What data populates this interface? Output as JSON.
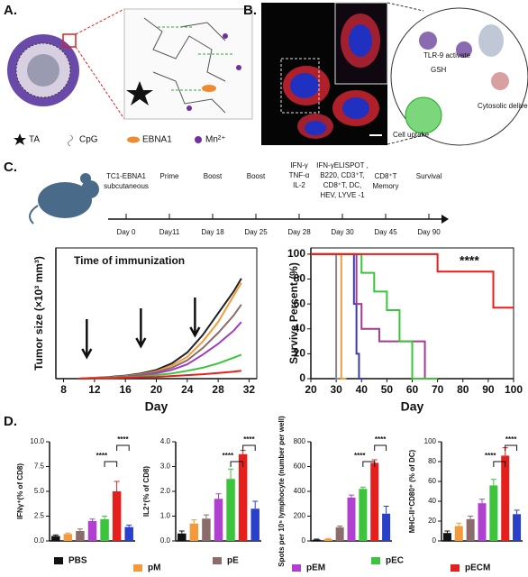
{
  "panel_a": {
    "label": "A.",
    "legend": [
      "TA",
      "CpG",
      "EBNA1",
      "Mn²⁺"
    ]
  },
  "panel_b": {
    "label": "B.",
    "annotations": [
      "TLR-9 activate",
      "GSH",
      "Cytosolic delivery",
      "Cell uptake"
    ]
  },
  "panel_c": {
    "label": "C.",
    "timeline": {
      "events": [
        [
          "TC1-EBNA1",
          "subcutaneous"
        ],
        [
          "Prime"
        ],
        [
          "Boost"
        ],
        [
          "Boost"
        ],
        [
          "IFN-γ",
          "TNF-α",
          "IL-2"
        ],
        [
          "IFN-γELISPOT ,",
          "B220, CD3⁺T,",
          "CD8⁺T, DC,",
          "HEV, LYVE -1"
        ],
        [
          "CD8⁺T",
          "Memory"
        ],
        [
          "Survival"
        ]
      ],
      "days": [
        "Day 0",
        "Day11",
        "Day 18",
        "Day 25",
        "Day 28",
        "Day 30",
        "Day 45",
        "Day 90"
      ]
    }
  },
  "panel_d": {
    "label": "D."
  },
  "chart_data": [
    {
      "type": "line",
      "x_label": "Day",
      "y_label": "Tumor size (×10³ mm³)",
      "annotation": "Time of immunization",
      "arrows": [
        11,
        18,
        25
      ],
      "x": [
        10,
        12,
        14,
        16,
        18,
        20,
        22,
        24,
        26,
        28,
        30,
        31
      ],
      "xlim": [
        7,
        33
      ],
      "xticks": [
        8,
        12,
        16,
        20,
        24,
        28,
        32
      ],
      "ylim": [
        0,
        3
      ],
      "series": [
        {
          "name": "PBS",
          "color": "#222222",
          "values": [
            0,
            0.02,
            0.04,
            0.07,
            0.12,
            0.2,
            0.35,
            0.6,
            1.0,
            1.5,
            2.0,
            2.3
          ]
        },
        {
          "name": "pM",
          "color": "#f39a3c",
          "values": [
            0,
            0.02,
            0.03,
            0.06,
            0.1,
            0.17,
            0.3,
            0.5,
            0.85,
            1.3,
            1.9,
            2.2
          ]
        },
        {
          "name": "pE",
          "color": "#8c6b6b",
          "values": [
            0,
            0.01,
            0.03,
            0.05,
            0.09,
            0.15,
            0.25,
            0.42,
            0.7,
            1.05,
            1.45,
            1.7
          ]
        },
        {
          "name": "pEM",
          "color": "#a23cc0",
          "values": [
            0,
            0.01,
            0.02,
            0.04,
            0.07,
            0.12,
            0.2,
            0.33,
            0.55,
            0.8,
            1.1,
            1.3
          ]
        },
        {
          "name": "pEC",
          "color": "#3cc43c",
          "values": [
            0,
            0.01,
            0.02,
            0.03,
            0.05,
            0.08,
            0.12,
            0.18,
            0.25,
            0.35,
            0.48,
            0.55
          ]
        },
        {
          "name": "pECM",
          "color": "#e5201c",
          "values": [
            0,
            0.01,
            0.01,
            0.02,
            0.03,
            0.04,
            0.06,
            0.08,
            0.1,
            0.13,
            0.16,
            0.18
          ]
        }
      ]
    },
    {
      "type": "line",
      "x_label": "Day",
      "y_label": "Survive Percent (%)",
      "annotation": "****",
      "xlim": [
        20,
        100
      ],
      "xticks": [
        20,
        30,
        40,
        50,
        60,
        70,
        80,
        90,
        100
      ],
      "ylim": [
        0,
        105
      ],
      "yticks": [
        0,
        20,
        40,
        60,
        80,
        100
      ],
      "series": [
        {
          "name": "PBS",
          "color": "#888888",
          "x": [
            20,
            30,
            30,
            32
          ],
          "values": [
            100,
            100,
            0,
            0
          ]
        },
        {
          "name": "pM",
          "color": "#f39a3c",
          "x": [
            20,
            32,
            32,
            34
          ],
          "values": [
            100,
            100,
            0,
            0
          ]
        },
        {
          "name": "pE",
          "color": "#3b3bb0",
          "x": [
            20,
            37,
            37,
            38,
            38,
            39,
            39,
            41
          ],
          "values": [
            100,
            100,
            60,
            60,
            20,
            20,
            0,
            0
          ]
        },
        {
          "name": "pEM",
          "color": "#a23c90",
          "x": [
            20,
            38,
            38,
            40,
            40,
            47,
            47,
            65,
            65,
            67
          ],
          "values": [
            100,
            100,
            60,
            60,
            40,
            40,
            30,
            30,
            0,
            0
          ]
        },
        {
          "name": "pEC",
          "color": "#3cc43c",
          "x": [
            20,
            40,
            40,
            45,
            45,
            50,
            50,
            55,
            55,
            60,
            60,
            70
          ],
          "values": [
            100,
            100,
            85,
            85,
            70,
            70,
            55,
            55,
            30,
            30,
            0,
            0
          ]
        },
        {
          "name": "pECM",
          "color": "#e5201c",
          "x": [
            20,
            70,
            70,
            92,
            92,
            100
          ],
          "values": [
            100,
            100,
            86,
            86,
            57,
            57
          ]
        }
      ]
    },
    {
      "type": "bar",
      "y_label": "IFNγ⁺(% of CD8)",
      "annotations": [
        "****",
        "****"
      ],
      "categories": [
        "PBS",
        "pM",
        "pE",
        "pEM",
        "pEC",
        "pECM",
        null
      ],
      "colors": [
        "#111111",
        "#f39a3c",
        "#8c6b6b",
        "#b040d0",
        "#3cc43c",
        "#e5201c",
        "#2a40c8"
      ],
      "values": [
        0.5,
        0.7,
        1.0,
        2.0,
        2.2,
        5.0,
        1.4
      ],
      "errors": [
        0.1,
        0.1,
        0.2,
        0.2,
        0.3,
        1.0,
        0.2
      ],
      "ylim": [
        0,
        10
      ],
      "yticks": [
        {
          "value": 0,
          "label": "0.0"
        },
        {
          "value": 2.5,
          "label": "2.5"
        },
        {
          "value": 5,
          "label": "5.0"
        },
        {
          "value": 7.5,
          "label": "7.5"
        },
        {
          "value": 10,
          "label": "10.0"
        }
      ]
    },
    {
      "type": "bar",
      "y_label": "IL2⁺(% of CD8)",
      "annotations": [
        "****",
        "****"
      ],
      "categories": [
        "PBS",
        "pM",
        "pE",
        "pEM",
        "pEC",
        "pECM",
        null
      ],
      "colors": [
        "#111111",
        "#f39a3c",
        "#8c6b6b",
        "#b040d0",
        "#3cc43c",
        "#e5201c",
        "#2a40c8"
      ],
      "values": [
        0.3,
        0.7,
        0.9,
        1.7,
        2.5,
        3.5,
        1.3
      ],
      "errors": [
        0.1,
        0.15,
        0.15,
        0.2,
        0.4,
        0.15,
        0.3
      ],
      "ylim": [
        0,
        4
      ],
      "yticks": [
        {
          "value": 0,
          "label": "0.0"
        },
        {
          "value": 1,
          "label": "1.0"
        },
        {
          "value": 2,
          "label": "2.0"
        },
        {
          "value": 3,
          "label": "3.0"
        },
        {
          "value": 4,
          "label": "4.0"
        }
      ]
    },
    {
      "type": "bar",
      "y_label": "Spots per 10⁵ lymphocyte (number per well)",
      "annotations": [
        "****",
        "****"
      ],
      "categories": [
        "PBS",
        "pM",
        "pE",
        "pEM",
        "pEC",
        "pECM",
        null
      ],
      "colors": [
        "#111111",
        "#f39a3c",
        "#8c6b6b",
        "#b040d0",
        "#3cc43c",
        "#e5201c",
        "#2a40c8"
      ],
      "values": [
        10,
        15,
        110,
        350,
        420,
        630,
        220
      ],
      "errors": [
        5,
        5,
        10,
        20,
        15,
        25,
        60
      ],
      "ylim": [
        0,
        800
      ],
      "yticks": [
        0,
        200,
        400,
        600,
        800
      ]
    },
    {
      "type": "bar",
      "y_label": "MHC-II⁺CD80⁺ (% of DC)",
      "annotations": [
        "****",
        "****"
      ],
      "categories": [
        "PBS",
        "pM",
        "pE",
        "pEM",
        "pEC",
        "pECM",
        null
      ],
      "colors": [
        "#111111",
        "#f39a3c",
        "#8c6b6b",
        "#b040d0",
        "#3cc43c",
        "#e5201c",
        "#2a40c8"
      ],
      "values": [
        8,
        15,
        22,
        38,
        56,
        86,
        27
      ],
      "errors": [
        2,
        3,
        3,
        4,
        6,
        8,
        4
      ],
      "ylim": [
        0,
        100
      ],
      "yticks": [
        0,
        20,
        40,
        60,
        80,
        100
      ]
    }
  ]
}
